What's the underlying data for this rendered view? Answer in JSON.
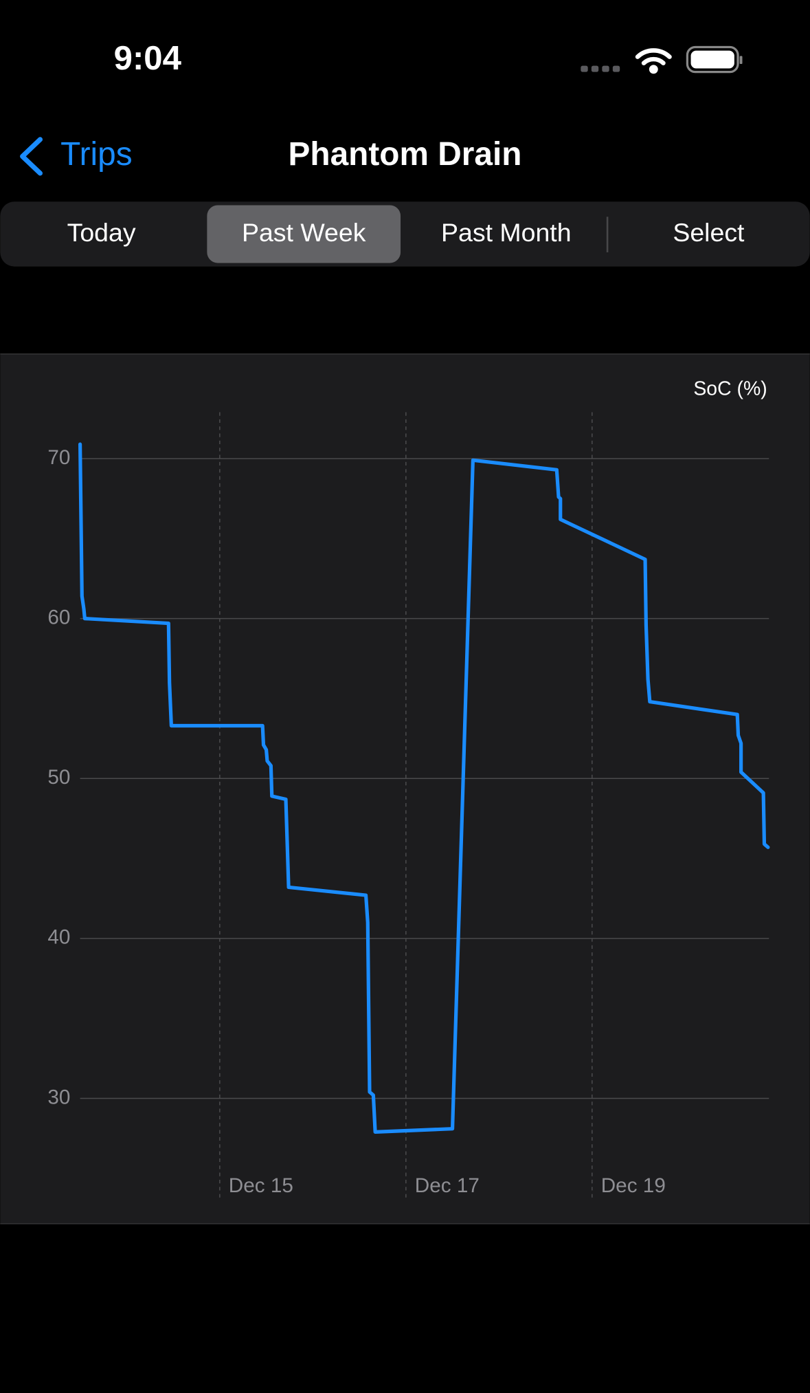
{
  "status_bar": {
    "time": "9:04"
  },
  "nav": {
    "back": "Trips",
    "title": "Phantom Drain"
  },
  "segments": [
    "Today",
    "Past Week",
    "Past Month",
    "Select"
  ],
  "selected_segment": 1,
  "chart_data": {
    "type": "line",
    "y_label": "SoC (%)",
    "color": "#1a8cff",
    "grid": true,
    "x": [
      13.5,
      13.52,
      13.54,
      13.55,
      14.45,
      14.46,
      14.48,
      15.46,
      15.47,
      15.5,
      15.51,
      15.55,
      15.56,
      15.71,
      15.74,
      16.57,
      16.59,
      16.61,
      16.65,
      16.67,
      17.5,
      17.72,
      18.62,
      18.64,
      18.66,
      18.66,
      19.57,
      19.58,
      19.6,
      19.62,
      20.56,
      20.57,
      20.6,
      20.6,
      20.84,
      20.85,
      20.89
    ],
    "values": [
      70.9,
      61.4,
      60.6,
      60.0,
      59.7,
      56.0,
      53.3,
      53.3,
      52.1,
      51.8,
      51.1,
      50.8,
      48.9,
      48.7,
      43.2,
      42.7,
      41.0,
      30.4,
      30.2,
      27.9,
      28.1,
      69.9,
      69.3,
      67.6,
      67.5,
      66.2,
      63.7,
      59.6,
      56.2,
      54.8,
      54.0,
      52.7,
      52.2,
      50.4,
      49.1,
      45.9,
      45.7
    ],
    "xlim": [
      13.5,
      20.9
    ],
    "xticks": [
      {
        "value": 15,
        "label": "Dec 15"
      },
      {
        "value": 17,
        "label": "Dec 17"
      },
      {
        "value": 19,
        "label": "Dec 19"
      }
    ],
    "ylim": [
      23.8,
      72.9
    ],
    "yticks": [
      30,
      40,
      50,
      60,
      70
    ]
  }
}
